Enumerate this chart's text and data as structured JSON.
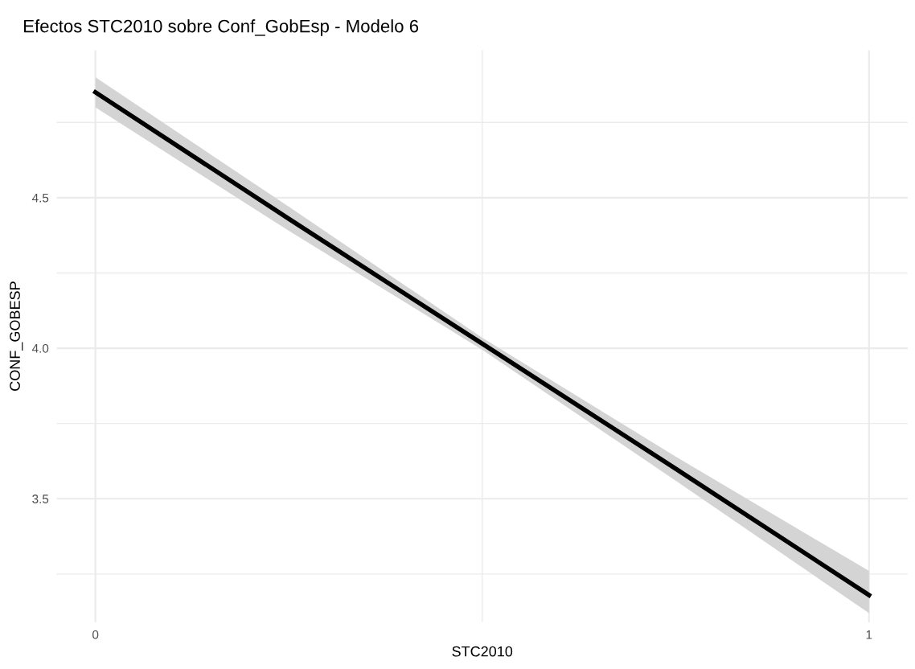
{
  "chart_data": {
    "type": "line",
    "title": "Efectos STC2010 sobre Conf_GobEsp - Modelo 6",
    "xlabel": "STC2010",
    "ylabel": "CONF_GOBESP",
    "x": [
      0,
      0.25,
      0.5,
      0.75,
      1
    ],
    "series": [
      {
        "color": "#000000",
        "values": [
          4.85,
          4.43,
          4.015,
          3.6,
          3.18
        ],
        "lower": [
          4.8,
          4.39,
          3.995,
          3.56,
          3.12
        ],
        "upper": [
          4.9,
          4.47,
          4.035,
          3.64,
          3.26
        ]
      }
    ],
    "xlim": [
      -0.05,
      1.05
    ],
    "ylim": [
      3.09,
      4.99
    ],
    "xticks": [
      0,
      1
    ],
    "yticks": [
      3.5,
      {
        "value": 4.0,
        "label": "4.0"
      },
      4.5
    ],
    "grid": true,
    "marker": "none",
    "line_style": "solid"
  }
}
